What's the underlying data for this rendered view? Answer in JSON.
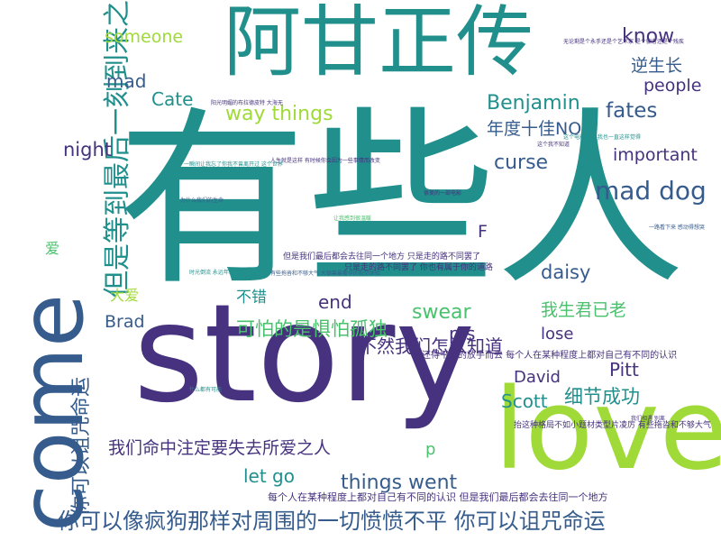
{
  "title": "",
  "palette": {
    "background": "#ffffff",
    "purple": "#46327e",
    "teal": "#21908d",
    "blue": "#365c8d",
    "green": "#4ac16d",
    "lime": "#a0da39",
    "dark": "#440154"
  },
  "words": [
    {
      "text": "有些人",
      "color": "#21908d"
    },
    {
      "text": "story",
      "color": "#46327e"
    },
    {
      "text": "love",
      "color": "#a0da39"
    },
    {
      "text": "come",
      "color": "#365c8d"
    },
    {
      "text": "阿甘正传",
      "color": "#21908d"
    },
    {
      "text": "但是等到最后一刻到来之时",
      "color": "#21908d"
    },
    {
      "text": "你可以诅咒命运",
      "color": "#365c8d"
    },
    {
      "text": "你可以像疯狗那样对周围的一切愤愤不平 你可以诅咒命运",
      "color": "#365c8d"
    },
    {
      "text": "我们命中注定要失去所爱之人",
      "color": "#46327e"
    },
    {
      "text": "可怕的是惧怕孤独",
      "color": "#4ac16d"
    },
    {
      "text": "不然我们怎么知道",
      "color": "#46327e"
    },
    {
      "text": "我生君已老",
      "color": "#4ac16d"
    },
    {
      "text": "细节成功",
      "color": "#21908d"
    },
    {
      "text": "年度十佳NO",
      "color": "#365c8d"
    },
    {
      "text": "逆生长",
      "color": "#365c8d"
    },
    {
      "text": "Benjamin",
      "color": "#21908d"
    },
    {
      "text": "way things",
      "color": "#a0da39"
    },
    {
      "text": "things went",
      "color": "#365c8d"
    },
    {
      "text": "mad dog",
      "color": "#365c8d"
    },
    {
      "text": "important",
      "color": "#46327e"
    },
    {
      "text": "curse",
      "color": "#365c8d"
    },
    {
      "text": "fates",
      "color": "#365c8d"
    },
    {
      "text": "people",
      "color": "#46327e"
    },
    {
      "text": "know",
      "color": "#46327e"
    },
    {
      "text": "someone",
      "color": "#a0da39"
    },
    {
      "text": "Cate",
      "color": "#21908d"
    },
    {
      "text": "mad",
      "color": "#365c8d"
    },
    {
      "text": "night",
      "color": "#46327e"
    },
    {
      "text": "swear",
      "color": "#4ac16d"
    },
    {
      "text": "end",
      "color": "#46327e"
    },
    {
      "text": "daisy",
      "color": "#365c8d"
    },
    {
      "text": "lose",
      "color": "#46327e"
    },
    {
      "text": "Brad",
      "color": "#365c8d"
    },
    {
      "text": "David",
      "color": "#46327e"
    },
    {
      "text": "Pitt",
      "color": "#46327e"
    },
    {
      "text": "Scott",
      "color": "#21908d"
    },
    {
      "text": "let go",
      "color": "#21908d"
    },
    {
      "text": "p s",
      "color": "#46327e"
    },
    {
      "text": "F",
      "color": "#46327e"
    },
    {
      "text": "p",
      "color": "#4ac16d"
    },
    {
      "text": "不错",
      "color": "#21908d"
    },
    {
      "text": "大爱",
      "color": "#a0da39"
    },
    {
      "text": "爱",
      "color": "#4ac16d"
    },
    {
      "text": "每个人在某种程度上都对自己有不同的认识 但是我们最后都会去往同一个地方",
      "color": "#46327e"
    },
    {
      "text": "你还得平静的放手而去 每个人在某种程度上都对自己有不同的认识",
      "color": "#46327e"
    },
    {
      "text": "抬这种格局不如小题材类型片凌厉 有些拖沓和不够大气",
      "color": "#46327e"
    },
    {
      "text": "但是我们最后都会去往同一个地方 只是走的路不同罢了",
      "color": "#46327e"
    },
    {
      "text": "只是走的路不同罢了 你也有属于你的道路",
      "color": "#46327e"
    },
    {
      "text": "一瞬间让我忘了你我不曾离开过 这个世界",
      "color": "#21908d"
    },
    {
      "text": "有些拖沓和不够大气 大银幕最奢华的视觉体验",
      "color": "#365c8d"
    },
    {
      "text": "阳光明媚的布拉德皮特 大海无",
      "color": "#46327e"
    },
    {
      "text": "无论剩是个永手还是个艺术家 是个骗者还是个残疾",
      "color": "#46327e"
    },
    {
      "text": "这个电影好看 我也一直这样觉得",
      "color": "#21908d"
    },
    {
      "text": "这个我不知道",
      "color": "#46327e"
    },
    {
      "text": "让我感到很温暖",
      "color": "#4ac16d"
    },
    {
      "text": "我们相遇 别离",
      "color": "#46327e"
    },
    {
      "text": "什么都有可能",
      "color": "#21908d"
    },
    {
      "text": "为什么我们的生命",
      "color": "#365c8d"
    },
    {
      "text": "人生就是这样 有时候你会因为一些事情而改变",
      "color": "#46327e"
    },
    {
      "text": "时光倒流 永远年轻",
      "color": "#21908d"
    },
    {
      "text": "很美的一部电影",
      "color": "#46327e"
    },
    {
      "text": "一路看下来 感动得想哭",
      "color": "#365c8d"
    }
  ]
}
